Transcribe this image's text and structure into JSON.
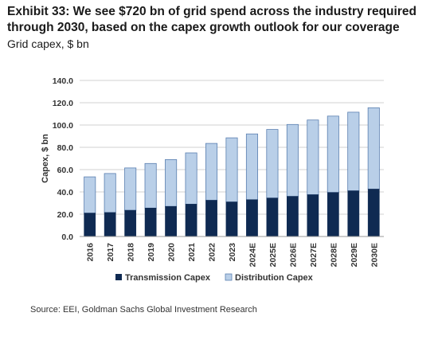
{
  "header": {
    "title_line1": "Exhibit 33: We see $720 bn of grid spend across the industry required",
    "title_line2": "through 2030, based on the capex growth outlook for our coverage",
    "subtitle": "Grid capex, $ bn"
  },
  "footer": {
    "source": "Source: EEI, Goldman Sachs Global Investment Research"
  },
  "colors": {
    "transmission": "#0f2a52",
    "distribution": "#b9cfe8",
    "bar_outline": "#5a7fb0",
    "grid": "#d0d0d0"
  },
  "chart_data": {
    "type": "bar",
    "stacked": true,
    "title": "Exhibit 33: We see $720 bn of grid spend across the industry required through 2030, based on the capex growth outlook for our coverage",
    "subtitle": "Grid capex, $ bn",
    "xlabel": "",
    "ylabel": "Capex, $ bn",
    "ylim": [
      0,
      140
    ],
    "yticks": [
      0,
      20,
      40,
      60,
      80,
      100,
      120,
      140
    ],
    "ytick_labels": [
      "0.0",
      "20.0",
      "40.0",
      "60.0",
      "80.0",
      "100.0",
      "120.0",
      "140.0"
    ],
    "grid": true,
    "legend_position": "bottom",
    "categories": [
      "2016",
      "2017",
      "2018",
      "2019",
      "2020",
      "2021",
      "2022",
      "2023",
      "2024E",
      "2025E",
      "2026E",
      "2027E",
      "2028E",
      "2029E",
      "2030E"
    ],
    "series": [
      {
        "name": "Transmission Capex",
        "values": [
          21,
          21.5,
          23.5,
          25.5,
          27,
          29,
          32.5,
          31,
          33,
          34.5,
          36,
          37.5,
          39.5,
          41,
          42.5
        ]
      },
      {
        "name": "Distribution Capex",
        "values": [
          32.5,
          35,
          38,
          40,
          42,
          46,
          51,
          57.5,
          59,
          61.5,
          64.5,
          67,
          68.5,
          70.5,
          73
        ]
      }
    ]
  }
}
